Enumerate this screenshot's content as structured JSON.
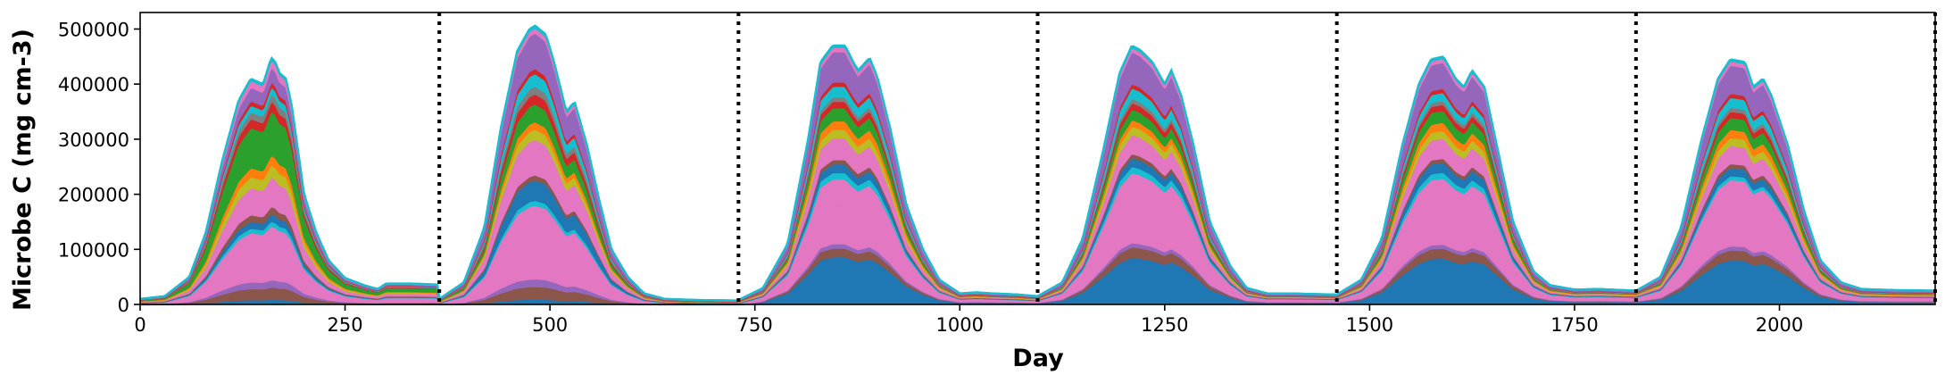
{
  "chart_data": {
    "type": "area",
    "stacked": true,
    "title": "",
    "xlabel": "Day",
    "ylabel": "Microbe C (mg cm-3)",
    "xlim": [
      0,
      2190
    ],
    "ylim": [
      0,
      530000
    ],
    "xticks": [
      0,
      250,
      500,
      750,
      1000,
      1250,
      1500,
      1750,
      2000
    ],
    "yticks": [
      0,
      100000,
      200000,
      300000,
      400000,
      500000
    ],
    "year_boundaries": [
      365,
      730,
      1095,
      1460,
      1825,
      2190
    ],
    "legend": "none",
    "grid": false,
    "total_x": [
      0,
      30,
      60,
      80,
      100,
      120,
      135,
      150,
      160,
      165,
      170,
      178,
      185,
      200,
      215,
      230,
      250,
      275,
      290,
      300,
      330,
      364,
      365,
      395,
      420,
      440,
      460,
      475,
      482,
      495,
      505,
      515,
      520,
      530,
      545,
      560,
      575,
      595,
      615,
      640,
      680,
      729,
      730,
      760,
      790,
      815,
      830,
      845,
      860,
      870,
      876,
      890,
      900,
      915,
      935,
      955,
      975,
      1000,
      1020,
      1040,
      1070,
      1094,
      1095,
      1125,
      1150,
      1175,
      1195,
      1210,
      1220,
      1235,
      1250,
      1258,
      1270,
      1285,
      1305,
      1330,
      1350,
      1375,
      1400,
      1459,
      1460,
      1490,
      1515,
      1540,
      1560,
      1575,
      1590,
      1605,
      1615,
      1625,
      1640,
      1655,
      1675,
      1700,
      1720,
      1750,
      1780,
      1824,
      1825,
      1855,
      1880,
      1905,
      1925,
      1940,
      1958,
      1968,
      1980,
      1990,
      2010,
      2030,
      2050,
      2075,
      2100,
      2140,
      2190
    ],
    "total_y": [
      10000,
      15000,
      50000,
      130000,
      260000,
      370000,
      410000,
      400000,
      448000,
      440000,
      420000,
      410000,
      360000,
      200000,
      130000,
      80000,
      48000,
      34000,
      28000,
      38000,
      38000,
      36000,
      10000,
      40000,
      140000,
      320000,
      460000,
      500000,
      506000,
      490000,
      440000,
      380000,
      350000,
      368000,
      290000,
      190000,
      100000,
      50000,
      20000,
      10000,
      8000,
      7000,
      8000,
      30000,
      110000,
      300000,
      440000,
      470000,
      470000,
      440000,
      425000,
      448000,
      410000,
      320000,
      180000,
      100000,
      45000,
      20000,
      22000,
      20000,
      18000,
      15000,
      15000,
      40000,
      120000,
      280000,
      420000,
      470000,
      462000,
      440000,
      400000,
      425000,
      380000,
      290000,
      150000,
      70000,
      30000,
      20000,
      20000,
      18000,
      18000,
      45000,
      120000,
      290000,
      400000,
      445000,
      450000,
      410000,
      395000,
      425000,
      395000,
      290000,
      150000,
      60000,
      35000,
      27000,
      28000,
      25000,
      25000,
      50000,
      140000,
      300000,
      410000,
      445000,
      440000,
      395000,
      410000,
      380000,
      290000,
      170000,
      80000,
      40000,
      28000,
      26000,
      25000
    ],
    "component_profile_x": [
      0,
      0.35,
      0.7,
      1.0
    ],
    "component_profile_y": [
      1.0,
      0.85,
      0.7,
      0.55
    ],
    "series": [
      {
        "color": "#1f77b4",
        "fractions": [
          0.02,
          0.02,
          0.22,
          0.22,
          0.23,
          0.22
        ]
      },
      {
        "color": "#8c564b",
        "fractions": [
          0.05,
          0.05,
          0.04,
          0.05,
          0.05,
          0.05
        ]
      },
      {
        "color": "#9467bd",
        "fractions": [
          0.03,
          0.03,
          0.02,
          0.02,
          0.02,
          0.02
        ]
      },
      {
        "color": "#e377c2",
        "fractions": [
          0.12,
          0.15,
          0.18,
          0.15,
          0.17,
          0.16
        ]
      },
      {
        "color": "#e377c2",
        "fractions": [
          0.1,
          0.14,
          0.12,
          0.18,
          0.16,
          0.17
        ]
      },
      {
        "color": "#17becf",
        "fractions": [
          0.02,
          0.02,
          0.03,
          0.03,
          0.03,
          0.02
        ]
      },
      {
        "color": "#1f77b4",
        "fractions": [
          0.03,
          0.08,
          0.04,
          0.04,
          0.05,
          0.04
        ]
      },
      {
        "color": "#8c564b",
        "fractions": [
          0.03,
          0.02,
          0.02,
          0.02,
          0.02,
          0.02
        ]
      },
      {
        "color": "#e377c2",
        "fractions": [
          0.12,
          0.14,
          0.1,
          0.09,
          0.1,
          0.09
        ]
      },
      {
        "color": "#bcbd22",
        "fractions": [
          0.05,
          0.04,
          0.04,
          0.04,
          0.04,
          0.04
        ]
      },
      {
        "color": "#ff7f0e",
        "fractions": [
          0.04,
          0.03,
          0.04,
          0.03,
          0.04,
          0.04
        ]
      },
      {
        "color": "#2ca02c",
        "fractions": [
          0.18,
          0.07,
          0.06,
          0.05,
          0.06,
          0.06
        ]
      },
      {
        "color": "#d62728",
        "fractions": [
          0.04,
          0.04,
          0.03,
          0.03,
          0.03,
          0.03
        ]
      },
      {
        "color": "#7f7f7f",
        "fractions": [
          0.03,
          0.03,
          0.02,
          0.02,
          0.02,
          0.02
        ]
      },
      {
        "color": "#17becf",
        "fractions": [
          0.03,
          0.05,
          0.05,
          0.05,
          0.04,
          0.05
        ]
      },
      {
        "color": "#d62728",
        "fractions": [
          0.02,
          0.02,
          0.02,
          0.02,
          0.02,
          0.02
        ]
      },
      {
        "color": "#9467bd",
        "fractions": [
          0.06,
          0.14,
          0.14,
          0.15,
          0.13,
          0.14
        ]
      },
      {
        "color": "#e377c2",
        "fractions": [
          0.03,
          0.02,
          0.02,
          0.02,
          0.02,
          0.02
        ]
      },
      {
        "color": "#17becf",
        "fractions": [
          0.01,
          0.01,
          0.01,
          0.01,
          0.01,
          0.01
        ]
      }
    ]
  }
}
